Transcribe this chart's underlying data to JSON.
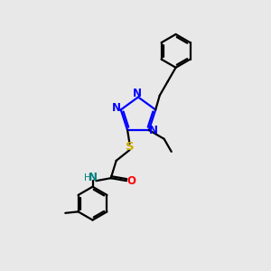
{
  "bg_color": "#e8e8e8",
  "bond_color": "#000000",
  "N_color": "#0000ff",
  "O_color": "#ff0000",
  "S_color": "#ccaa00",
  "NH_color": "#008080",
  "line_width": 1.6,
  "font_size": 8.5,
  "xlim": [
    0,
    10
  ],
  "ylim": [
    0,
    10
  ]
}
